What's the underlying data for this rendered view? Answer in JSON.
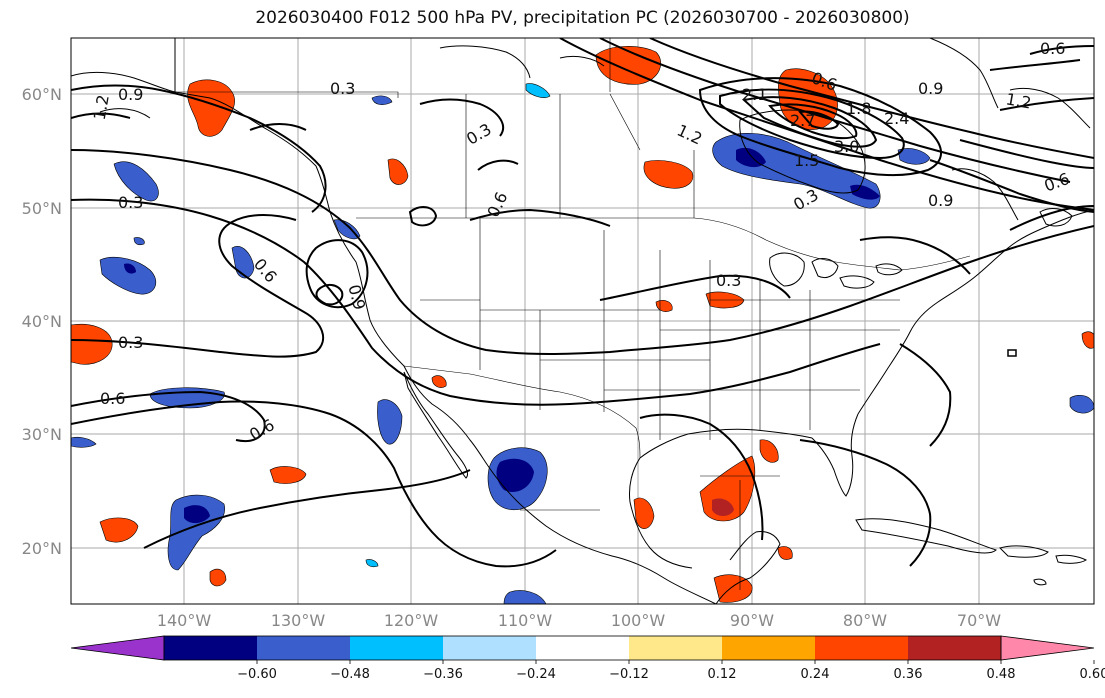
{
  "title": "2026030400 F012 500 hPa PV, precipitation PC (2026030700 - 2026030800)",
  "axes": {
    "lat_labels": [
      "60°N",
      "50°N",
      "40°N",
      "30°N",
      "20°N"
    ],
    "lon_labels": [
      "140°W",
      "130°W",
      "120°W",
      "110°W",
      "100°W",
      "90°W",
      "80°W",
      "70°W"
    ]
  },
  "colorbar": {
    "ticks": [
      "−0.60",
      "−0.48",
      "−0.36",
      "−0.24",
      "−0.12",
      "0.12",
      "0.24",
      "0.36",
      "0.48",
      "0.60"
    ],
    "colors": [
      "#9933cc",
      "#000080",
      "#3a5fcd",
      "#00bfff",
      "#b0e0ff",
      "#ffffff",
      "#ffe88a",
      "#ffa500",
      "#ff4500",
      "#b22222",
      "#ff88aa"
    ]
  },
  "contour_labels": [
    "0.9",
    "1.2",
    "0.3",
    "0.3",
    "0.3",
    "0.6",
    "0.6",
    "0.9",
    "0.3",
    "0.6",
    "0.6",
    "0.3",
    "2.1",
    "0.6",
    "0.9",
    "1.2",
    "1.2",
    "1.8",
    "2.7",
    "2.4",
    "3.0",
    "1.5",
    "0.3",
    "0.9",
    "0.6",
    "0.6"
  ]
}
